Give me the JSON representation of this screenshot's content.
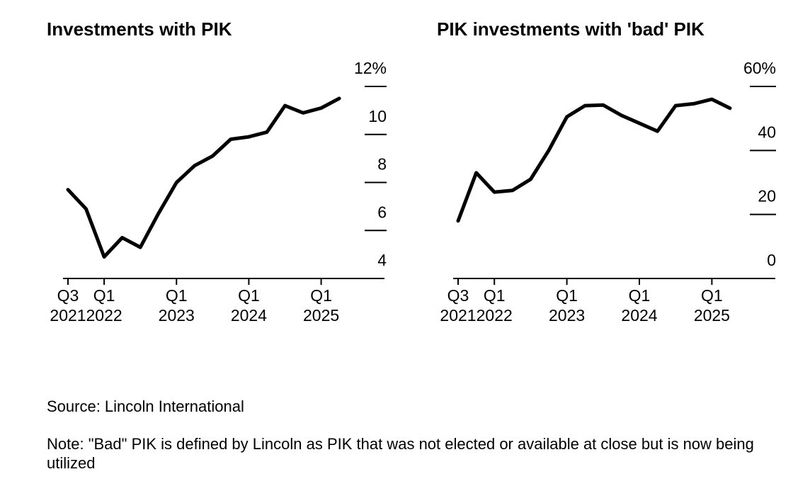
{
  "chart_data": [
    {
      "type": "line",
      "title": "Investments with PIK",
      "series": [
        {
          "name": "Investments with PIK",
          "values": [
            7.7,
            6.9,
            4.9,
            5.7,
            5.3,
            6.7,
            8.0,
            8.7,
            9.1,
            9.8,
            9.9,
            10.1,
            11.2,
            10.9,
            11.1,
            11.5
          ]
        }
      ],
      "x": [
        0,
        1,
        2,
        3,
        4,
        5,
        6,
        7,
        8,
        9,
        10,
        11,
        12,
        13,
        14,
        15
      ],
      "xlim": [
        0,
        17.5
      ],
      "x_ticks": [
        {
          "pos": 0,
          "label": [
            "Q3",
            "2021"
          ]
        },
        {
          "pos": 2,
          "label": [
            "Q1",
            "2022"
          ]
        },
        {
          "pos": 6,
          "label": [
            "Q1",
            "2023"
          ]
        },
        {
          "pos": 10,
          "label": [
            "Q1",
            "2024"
          ]
        },
        {
          "pos": 14,
          "label": [
            "Q1",
            "2025"
          ]
        }
      ],
      "ylim": [
        4,
        12
      ],
      "y_ticks": [
        {
          "value": 12,
          "label": "12%"
        },
        {
          "value": 10,
          "label": "10"
        },
        {
          "value": 8,
          "label": "8"
        },
        {
          "value": 6,
          "label": "6"
        },
        {
          "value": 4,
          "label": "4"
        }
      ],
      "xlabel": "",
      "ylabel": "",
      "grid": false,
      "legend": "none"
    },
    {
      "type": "line",
      "title": "PIK investments with 'bad' PIK",
      "series": [
        {
          "name": "PIK investments with 'bad' PIK",
          "values": [
            18,
            33,
            27,
            27.5,
            31,
            40,
            50.5,
            54,
            54.2,
            51,
            48.5,
            46,
            54,
            54.6,
            56,
            53.2
          ]
        }
      ],
      "x": [
        0,
        1,
        2,
        3,
        4,
        5,
        6,
        7,
        8,
        9,
        10,
        11,
        12,
        13,
        14,
        15
      ],
      "xlim": [
        0,
        17.5
      ],
      "x_ticks": [
        {
          "pos": 0,
          "label": [
            "Q3",
            "2021"
          ]
        },
        {
          "pos": 2,
          "label": [
            "Q1",
            "2022"
          ]
        },
        {
          "pos": 6,
          "label": [
            "Q1",
            "2023"
          ]
        },
        {
          "pos": 10,
          "label": [
            "Q1",
            "2024"
          ]
        },
        {
          "pos": 14,
          "label": [
            "Q1",
            "2025"
          ]
        }
      ],
      "ylim": [
        0,
        60
      ],
      "y_ticks": [
        {
          "value": 60,
          "label": "60%"
        },
        {
          "value": 40,
          "label": "40"
        },
        {
          "value": 20,
          "label": "20"
        },
        {
          "value": 0,
          "label": "0"
        }
      ],
      "xlabel": "",
      "ylabel": "",
      "grid": false,
      "legend": "none"
    }
  ],
  "footer": {
    "source": "Source: Lincoln International",
    "note": "Note: \"Bad\" PIK is defined by Lincoln as PIK that was not elected or available at close but is now being utilized"
  },
  "colors": {
    "line": "#000000",
    "text": "#000000",
    "background": "#ffffff"
  }
}
